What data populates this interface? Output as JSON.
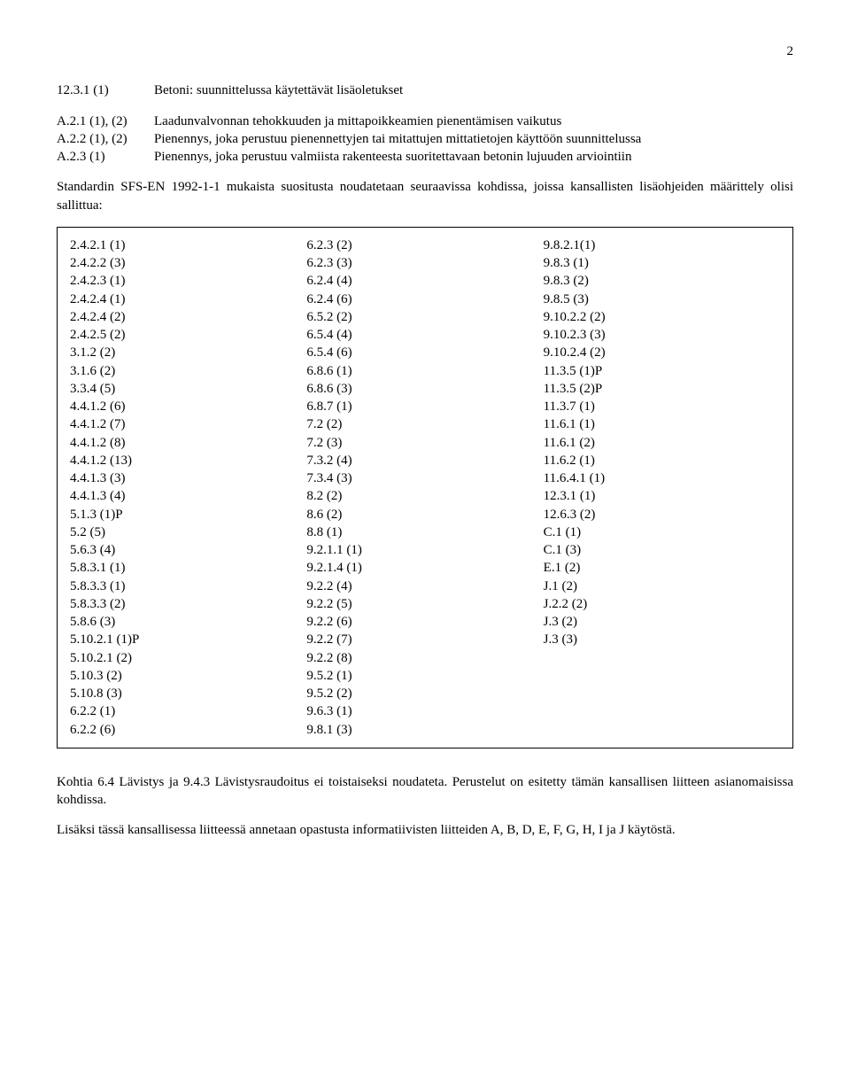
{
  "page_number": "2",
  "definitions_block1": [
    {
      "label": "12.3.1 (1)",
      "text": "Betoni: suunnittelussa käytettävät lisäoletukset"
    }
  ],
  "definitions_block2": [
    {
      "label": "A.2.1 (1), (2)",
      "text": "Laadunvalvonnan tehokkuuden ja mittapoikkeamien pienentämisen vaikutus"
    },
    {
      "label": "A.2.2 (1), (2)",
      "text": "Pienennys, joka perustuu pienennettyjen tai mitattujen mittatietojen käyttöön suunnittelussa"
    },
    {
      "label": "A.2.3 (1)",
      "text": "Pienennys, joka perustuu valmiista rakenteesta suoritettavaan betonin lujuuden arviointiin"
    }
  ],
  "intro_para": "Standardin SFS-EN 1992-1-1 mukaista suositusta noudatetaan seuraavissa kohdissa, joissa kansallisten lisäohjeiden määrittely olisi sallittua:",
  "table": {
    "col1": [
      "2.4.2.1 (1)",
      "2.4.2.2 (3)",
      "2.4.2.3 (1)",
      "2.4.2.4 (1)",
      "2.4.2.4 (2)",
      "2.4.2.5 (2)",
      "3.1.2 (2)",
      "3.1.6 (2)",
      "3.3.4 (5)",
      "4.4.1.2 (6)",
      "4.4.1.2 (7)",
      "4.4.1.2 (8)",
      "4.4.1.2 (13)",
      "4.4.1.3 (3)",
      "4.4.1.3 (4)",
      "5.1.3 (1)P",
      "5.2 (5)",
      "5.6.3 (4)",
      "5.8.3.1 (1)",
      "5.8.3.3 (1)",
      "5.8.3.3 (2)",
      "5.8.6 (3)",
      "5.10.2.1 (1)P",
      "5.10.2.1 (2)",
      "5.10.3 (2)",
      "5.10.8 (3)",
      "6.2.2 (1)",
      "6.2.2 (6)"
    ],
    "col2": [
      "6.2.3 (2)",
      "6.2.3 (3)",
      "6.2.4 (4)",
      "6.2.4 (6)",
      "6.5.2 (2)",
      "6.5.4 (4)",
      "6.5.4 (6)",
      "6.8.6 (1)",
      "6.8.6 (3)",
      "6.8.7 (1)",
      "7.2 (2)",
      "7.2 (3)",
      "7.3.2 (4)",
      "7.3.4 (3)",
      "8.2 (2)",
      "8.6 (2)",
      "8.8 (1)",
      "9.2.1.1 (1)",
      "9.2.1.4 (1)",
      "9.2.2 (4)",
      "9.2.2 (5)",
      "9.2.2 (6)",
      "9.2.2 (7)",
      "9.2.2 (8)",
      "9.5.2 (1)",
      "9.5.2 (2)",
      "9.6.3 (1)",
      "9.8.1 (3)"
    ],
    "col3": [
      "9.8.2.1(1)",
      "9.8.3 (1)",
      "9.8.3 (2)",
      "9.8.5 (3)",
      "9.10.2.2 (2)",
      "9.10.2.3 (3)",
      "9.10.2.4 (2)",
      "11.3.5 (1)P",
      "11.3.5 (2)P",
      "11.3.7 (1)",
      "11.6.1 (1)",
      "11.6.1 (2)",
      "11.6.2 (1)",
      "11.6.4.1 (1)",
      "12.3.1 (1)",
      "12.6.3 (2)",
      "C.1 (1)",
      "C.1 (3)",
      "E.1 (2)",
      "J.1 (2)",
      "J.2.2 (2)",
      "J.3 (2)",
      "J.3 (3)"
    ]
  },
  "footer_para1": "Kohtia 6.4 Lävistys ja 9.4.3 Lävistysraudoitus ei toistaiseksi noudateta. Perustelut on esitetty tämän kansallisen liitteen asianomaisissa kohdissa.",
  "footer_para2": "Lisäksi tässä kansallisessa liitteessä annetaan opastusta informatiivisten liitteiden A, B, D, E, F, G, H, I ja J käytöstä."
}
